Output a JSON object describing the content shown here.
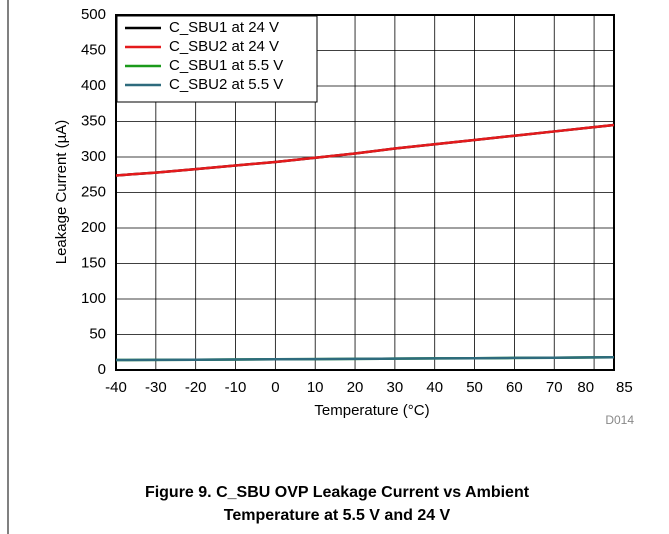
{
  "chart_data": {
    "type": "line",
    "x_label": "Temperature (°C)",
    "y_label": "Leakage Current (µA)",
    "annotation": "D014",
    "caption": [
      "Figure 9. C_SBU OVP Leakage Current vs Ambient",
      "Temperature at 5.5 V and 24 V"
    ],
    "x": [
      -40,
      -30,
      -20,
      -10,
      0,
      10,
      20,
      30,
      40,
      50,
      60,
      70,
      80,
      85
    ],
    "series": [
      {
        "name": "C_SBU1 at 24 V",
        "color": "#000000",
        "values": [
          274,
          278,
          283,
          288,
          293,
          299,
          305,
          312,
          318,
          324,
          330,
          336,
          342,
          345
        ]
      },
      {
        "name": "C_SBU2 at 24 V",
        "color": "#e41a1c",
        "values": [
          274,
          278,
          283,
          288,
          293,
          299,
          305,
          312,
          318,
          324,
          330,
          336,
          342,
          345
        ]
      },
      {
        "name": "C_SBU1 at 5.5 V",
        "color": "#1a9a1a",
        "values": [
          14,
          14.2,
          14.5,
          14.8,
          15.1,
          15.4,
          15.7,
          16,
          16.3,
          16.6,
          17,
          17.3,
          17.7,
          18
        ]
      },
      {
        "name": "C_SBU2 at 5.5 V",
        "color": "#2e6b7d",
        "values": [
          14,
          14.2,
          14.5,
          14.8,
          15.1,
          15.4,
          15.7,
          16,
          16.3,
          16.6,
          17,
          17.3,
          17.7,
          18
        ]
      }
    ],
    "xlim": [
      -40,
      85
    ],
    "xticks": [
      -40,
      -30,
      -20,
      -10,
      0,
      10,
      20,
      30,
      40,
      50,
      60,
      70,
      80,
      85
    ],
    "ylim": [
      0,
      500
    ],
    "yticks": [
      0,
      50,
      100,
      150,
      200,
      250,
      300,
      350,
      400,
      450,
      500
    ],
    "grid": true,
    "legend": "top-left"
  }
}
